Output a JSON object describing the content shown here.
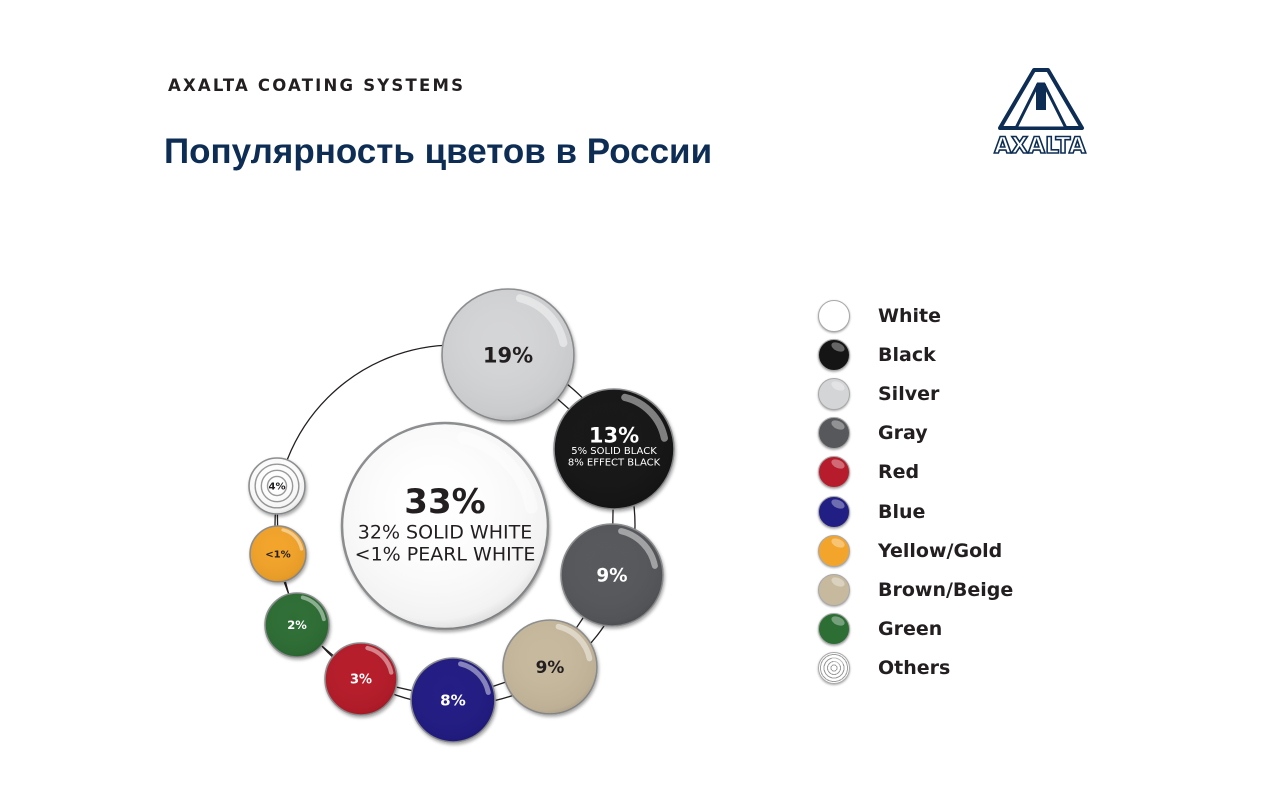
{
  "header": {
    "company": "AXALTA COATING SYSTEMS",
    "title": "Популярность цветов в России",
    "logo_text": "AXALTA"
  },
  "chart_data": {
    "type": "bubble",
    "title": "Популярность цветов в России",
    "center": {
      "category": "White",
      "value": 33,
      "label": "33%",
      "sublines": [
        "32% SOLID WHITE",
        "<1% PEARL WHITE"
      ],
      "color": "#ffffff"
    },
    "bubbles": [
      {
        "category": "Silver",
        "value": 19,
        "label": "19%",
        "color": "#d4d5d7",
        "text_color": "#231f20",
        "sublines": []
      },
      {
        "category": "Black",
        "value": 13,
        "label": "13%",
        "color": "#151515",
        "text_color": "#ffffff",
        "sublines": [
          "5% SOLID BLACK",
          "8% EFFECT BLACK"
        ]
      },
      {
        "category": "Gray",
        "value": 9,
        "label": "9%",
        "color": "#56585b",
        "text_color": "#ffffff",
        "sublines": []
      },
      {
        "category": "Brown/Beige",
        "value": 9,
        "label": "9%",
        "color": "#c7b99d",
        "text_color": "#231f20",
        "sublines": []
      },
      {
        "category": "Blue",
        "value": 8,
        "label": "8%",
        "color": "#211f84",
        "text_color": "#ffffff",
        "sublines": []
      },
      {
        "category": "Red",
        "value": 3,
        "label": "3%",
        "color": "#b71c2c",
        "text_color": "#ffffff",
        "sublines": []
      },
      {
        "category": "Green",
        "value": 2,
        "label": "2%",
        "color": "#2d6e35",
        "text_color": "#ffffff",
        "sublines": []
      },
      {
        "category": "Yellow/Gold",
        "value": 1,
        "label": "<1%",
        "color": "#f3a42b",
        "text_color": "#231f20",
        "sublines": []
      },
      {
        "category": "Others",
        "value": 4,
        "label": "4%",
        "color": "#ffffff",
        "text_color": "#231f20",
        "pattern": "rings",
        "sublines": []
      }
    ],
    "legend": {
      "placement": "right",
      "items": [
        {
          "label": "White",
          "color": "#ffffff"
        },
        {
          "label": "Black",
          "color": "#151515"
        },
        {
          "label": "Silver",
          "color": "#d4d5d7"
        },
        {
          "label": "Gray",
          "color": "#56585b"
        },
        {
          "label": "Red",
          "color": "#b71c2c"
        },
        {
          "label": "Blue",
          "color": "#211f84"
        },
        {
          "label": "Yellow/Gold",
          "color": "#f3a42b"
        },
        {
          "label": "Brown/Beige",
          "color": "#c7b99d"
        },
        {
          "label": "Green",
          "color": "#2d6e35"
        },
        {
          "label": "Others",
          "color": "#ffffff",
          "pattern": "rings"
        }
      ]
    }
  },
  "colors": {
    "title": "#0d2d55",
    "logo": "#0d2d55",
    "text_dark": "#231f20"
  }
}
